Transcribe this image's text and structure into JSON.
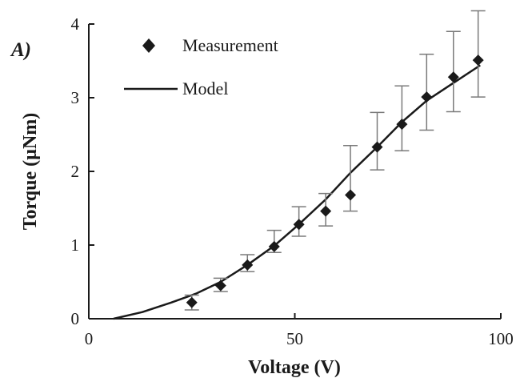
{
  "panel_label": "A)",
  "chart_data": {
    "type": "scatter",
    "xlabel": "Voltage (V)",
    "ylabel": "Torque (µNm)",
    "xlim": [
      0,
      100
    ],
    "ylim": [
      0,
      4
    ],
    "x_ticks": [
      "0",
      "50",
      "100"
    ],
    "y_ticks": [
      "0",
      "1",
      "2",
      "3",
      "4"
    ],
    "grid": false,
    "legend": {
      "placement": "top-left",
      "entries": [
        "Measurement",
        "Model"
      ]
    },
    "series": [
      {
        "name": "Measurement",
        "kind": "points",
        "marker": "diamond",
        "x": [
          25,
          32,
          38.5,
          45,
          51,
          57.5,
          63.5,
          70,
          76,
          82,
          88.5,
          94.5
        ],
        "y": [
          0.22,
          0.45,
          0.73,
          0.98,
          1.28,
          1.46,
          1.68,
          2.33,
          2.64,
          3.01,
          3.28,
          3.51
        ],
        "err_upper": [
          0.1,
          0.1,
          0.14,
          0.22,
          0.24,
          0.24,
          0.67,
          0.47,
          0.52,
          0.58,
          0.62,
          0.67
        ],
        "err_lower": [
          0.1,
          0.08,
          0.09,
          0.08,
          0.16,
          0.2,
          0.22,
          0.31,
          0.36,
          0.45,
          0.47,
          0.5
        ]
      },
      {
        "name": "Model",
        "kind": "line",
        "x": [
          6,
          13,
          20,
          26,
          32,
          38.5,
          45,
          51,
          57.5,
          63.5,
          70,
          76,
          82,
          88.5,
          95
        ],
        "y": [
          0,
          0.09,
          0.22,
          0.34,
          0.5,
          0.73,
          0.99,
          1.28,
          1.62,
          1.98,
          2.33,
          2.67,
          2.96,
          3.2,
          3.44
        ]
      }
    ]
  },
  "colors": {
    "ink": "#1a1a1a",
    "errorbar": "#7a7a7a",
    "background": "#ffffff"
  }
}
